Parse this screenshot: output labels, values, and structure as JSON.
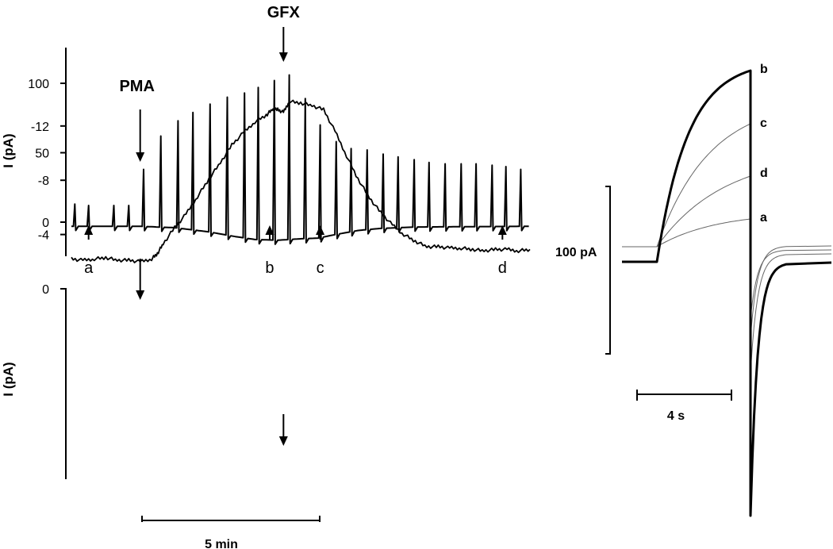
{
  "chart_data": [
    {
      "type": "line",
      "panel": "top",
      "ylabel": "I (pA)",
      "yticks": [
        0,
        50,
        100
      ],
      "ylim": [
        -22,
        125
      ],
      "xlim": [
        0,
        40
      ],
      "annotations": [
        {
          "label": "PMA",
          "x": 6.0,
          "arrow": "down"
        },
        {
          "label": "GFX",
          "x": 18.5,
          "arrow": "down"
        }
      ],
      "markers": [
        {
          "label": "a",
          "x": 1.5
        },
        {
          "label": "b",
          "x": 17.3
        },
        {
          "label": "c",
          "x": 21.7
        },
        {
          "label": "d",
          "x": 37.6
        }
      ],
      "series": [
        {
          "baseline": [
            [
              0,
              -3
            ],
            [
              6,
              -3
            ],
            [
              9,
              -4
            ],
            [
              12,
              -7
            ],
            [
              14,
              -10
            ],
            [
              16,
              -12.5
            ],
            [
              18,
              -13
            ],
            [
              20,
              -12
            ],
            [
              21.5,
              -11.5
            ],
            [
              23,
              -9
            ],
            [
              25,
              -6
            ],
            [
              27,
              -4.5
            ],
            [
              30,
              -3.5
            ],
            [
              40,
              -3
            ]
          ],
          "peaks_x": [
            0.3,
            1.5,
            3.7,
            5.0,
            6.3,
            7.8,
            9.3,
            10.6,
            12.1,
            13.6,
            15.1,
            16.3,
            17.7,
            19.0,
            20.4,
            21.7,
            23.1,
            24.4,
            25.8,
            27.2,
            28.5,
            29.9,
            31.2,
            32.6,
            34.0,
            35.3,
            36.7,
            37.9,
            39.2
          ],
          "peaks_y": [
            13,
            12,
            12,
            12,
            38,
            62,
            73,
            79,
            85,
            90,
            93,
            97,
            102,
            106,
            89,
            70,
            58,
            53,
            52,
            49,
            47,
            45,
            43,
            42,
            42,
            42,
            41,
            40,
            38
          ]
        }
      ]
    },
    {
      "type": "line",
      "panel": "bottom",
      "ylabel": "I (pA)",
      "yticks": [
        0,
        -4,
        -8,
        -12
      ],
      "ylim": [
        -14.2,
        0
      ],
      "xlim": [
        0,
        40
      ],
      "arrows_x": [
        6.0,
        18.5
      ],
      "series": [
        {
          "x": [
            0,
            1,
            2,
            3,
            4,
            5,
            6,
            7,
            7.5,
            8,
            9,
            10,
            11,
            12,
            13,
            14,
            15,
            16,
            17,
            17.5,
            18,
            18.5,
            19,
            20,
            21,
            22,
            23,
            24,
            25,
            26,
            27,
            28,
            29,
            30,
            31,
            32,
            33,
            34,
            35,
            36,
            37,
            38,
            39,
            40
          ],
          "y": [
            -2.2,
            -2.1,
            -2.2,
            -2.3,
            -2.1,
            -2.1,
            -2.0,
            -2.2,
            -2.6,
            -3.3,
            -4.5,
            -5.5,
            -6.8,
            -8.1,
            -9.3,
            -10.6,
            -11.5,
            -12.3,
            -12.8,
            -13.2,
            -13.2,
            -13.0,
            -13.8,
            -13.7,
            -13.5,
            -13.2,
            -11.6,
            -9.8,
            -8.1,
            -6.7,
            -5.6,
            -4.7,
            -4.0,
            -3.5,
            -3.1,
            -3.1,
            -3.0,
            -3.0,
            -2.9,
            -2.8,
            -2.9,
            -2.9,
            -2.8,
            -2.9
          ]
        }
      ]
    },
    {
      "type": "line",
      "panel": "right",
      "traces": [
        "b",
        "c",
        "d",
        "a"
      ],
      "series": [
        {
          "name": "a",
          "plateau": 37
        },
        {
          "name": "b",
          "plateau": 150
        },
        {
          "name": "c",
          "plateau": 82
        },
        {
          "name": "d",
          "plateau": 51
        }
      ]
    }
  ],
  "scale_bars": {
    "time_left": "5 min",
    "current_right": "100 pA",
    "time_right": "4 s"
  }
}
